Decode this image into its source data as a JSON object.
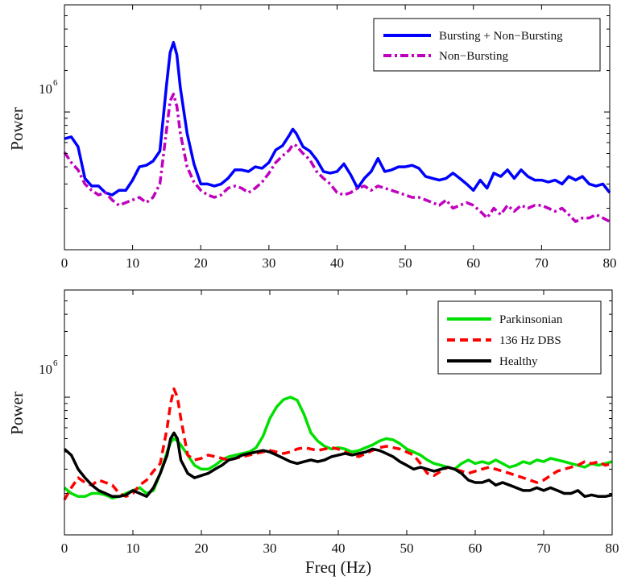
{
  "chart_data": [
    {
      "type": "line",
      "title": "",
      "xlabel": "",
      "ylabel": "Power",
      "xlim": [
        0,
        80
      ],
      "x_ticks": [
        "0",
        "10",
        "20",
        "30",
        "40",
        "50",
        "60",
        "70",
        "80"
      ],
      "y_scale": "log",
      "y_tick_base": "10",
      "y_tick_exp": "6",
      "y_tick_value": 1000000,
      "ylim": [
        100000,
        6000000
      ],
      "grid": false,
      "legend": "top-right",
      "series": [
        {
          "name": "Bursting + Non−Bursting",
          "color": "#0000ff",
          "style": "solid",
          "x": [
            0,
            1,
            2,
            3,
            4,
            5,
            6,
            7,
            8,
            9,
            10,
            11,
            12,
            13,
            14,
            15,
            15.5,
            16,
            16.5,
            17,
            18,
            19,
            20,
            21,
            22,
            23,
            24,
            25,
            26,
            27,
            28,
            29,
            30,
            31,
            32,
            33,
            33.5,
            34,
            35,
            36,
            37,
            38,
            39,
            40,
            41,
            42,
            43,
            44,
            45,
            46,
            47,
            48,
            49,
            50,
            51,
            52,
            53,
            54,
            55,
            56,
            57,
            58,
            59,
            60,
            61,
            62,
            63,
            64,
            65,
            66,
            67,
            68,
            69,
            70,
            71,
            72,
            73,
            74,
            75,
            76,
            77,
            78,
            79,
            80
          ],
          "values": [
            640000,
            660000,
            560000,
            330000,
            290000,
            290000,
            260000,
            250000,
            270000,
            270000,
            320000,
            400000,
            410000,
            440000,
            520000,
            1600000,
            2700000,
            3200000,
            2600000,
            1500000,
            700000,
            420000,
            300000,
            300000,
            290000,
            300000,
            330000,
            380000,
            380000,
            370000,
            400000,
            390000,
            430000,
            530000,
            570000,
            680000,
            750000,
            700000,
            560000,
            520000,
            450000,
            370000,
            360000,
            370000,
            420000,
            350000,
            280000,
            330000,
            370000,
            460000,
            370000,
            380000,
            400000,
            400000,
            410000,
            390000,
            340000,
            330000,
            320000,
            330000,
            360000,
            330000,
            300000,
            270000,
            320000,
            280000,
            360000,
            340000,
            380000,
            330000,
            380000,
            340000,
            320000,
            320000,
            310000,
            320000,
            300000,
            340000,
            320000,
            340000,
            300000,
            290000,
            300000,
            260000
          ]
        },
        {
          "name": "Non−Bursting",
          "color": "#bf00bf",
          "style": "dashdot",
          "x": [
            0,
            1,
            2,
            3,
            4,
            5,
            6,
            7,
            8,
            9,
            10,
            11,
            12,
            13,
            14,
            15,
            15.5,
            16,
            16.5,
            17,
            18,
            19,
            20,
            21,
            22,
            23,
            24,
            25,
            26,
            27,
            28,
            29,
            30,
            31,
            32,
            33,
            33.5,
            34,
            35,
            36,
            37,
            38,
            39,
            40,
            41,
            42,
            43,
            44,
            45,
            46,
            47,
            48,
            49,
            50,
            51,
            52,
            53,
            54,
            55,
            56,
            57,
            58,
            59,
            60,
            61,
            62,
            63,
            64,
            65,
            66,
            67,
            68,
            69,
            70,
            71,
            72,
            73,
            74,
            75,
            76,
            77,
            78,
            79,
            80
          ],
          "values": [
            510000,
            430000,
            380000,
            300000,
            270000,
            250000,
            260000,
            230000,
            210000,
            220000,
            230000,
            240000,
            220000,
            240000,
            300000,
            750000,
            1200000,
            1350000,
            1100000,
            700000,
            400000,
            310000,
            270000,
            250000,
            240000,
            250000,
            280000,
            290000,
            280000,
            260000,
            280000,
            310000,
            360000,
            430000,
            480000,
            530000,
            580000,
            570000,
            500000,
            450000,
            370000,
            330000,
            300000,
            260000,
            250000,
            260000,
            280000,
            290000,
            270000,
            290000,
            280000,
            270000,
            260000,
            250000,
            240000,
            240000,
            230000,
            220000,
            210000,
            230000,
            200000,
            210000,
            220000,
            210000,
            190000,
            170000,
            200000,
            180000,
            210000,
            190000,
            210000,
            200000,
            210000,
            210000,
            200000,
            190000,
            200000,
            180000,
            160000,
            170000,
            170000,
            180000,
            170000,
            160000
          ]
        }
      ]
    },
    {
      "type": "line",
      "title": "",
      "xlabel": "Freq (Hz)",
      "ylabel": "Power",
      "xlim": [
        0,
        80
      ],
      "x_ticks": [
        "0",
        "10",
        "20",
        "30",
        "40",
        "50",
        "60",
        "70",
        "80"
      ],
      "y_scale": "log",
      "y_tick_base": "10",
      "y_tick_exp": "6",
      "y_tick_value": 1000000,
      "ylim": [
        100000,
        6000000
      ],
      "grid": false,
      "legend": "top-right",
      "series": [
        {
          "name": "Parkinsonian",
          "color": "#00e000",
          "style": "solid",
          "x": [
            0,
            1,
            2,
            3,
            4,
            5,
            6,
            7,
            8,
            9,
            10,
            11,
            12,
            13,
            14,
            15,
            15.5,
            16,
            16.5,
            17,
            18,
            19,
            20,
            21,
            22,
            23,
            24,
            25,
            26,
            27,
            28,
            29,
            30,
            31,
            32,
            33,
            34,
            35,
            36,
            37,
            38,
            39,
            40,
            41,
            42,
            43,
            44,
            45,
            46,
            47,
            48,
            49,
            50,
            51,
            52,
            53,
            54,
            55,
            56,
            57,
            58,
            59,
            60,
            61,
            62,
            63,
            64,
            65,
            66,
            67,
            68,
            69,
            70,
            71,
            72,
            73,
            74,
            75,
            76,
            77,
            78,
            79,
            80
          ],
          "values": [
            220000,
            200000,
            190000,
            190000,
            200000,
            200000,
            195000,
            185000,
            190000,
            200000,
            210000,
            220000,
            200000,
            210000,
            280000,
            400000,
            470000,
            500000,
            480000,
            450000,
            380000,
            320000,
            300000,
            300000,
            320000,
            350000,
            370000,
            380000,
            390000,
            400000,
            430000,
            520000,
            700000,
            850000,
            960000,
            1000000,
            950000,
            750000,
            550000,
            480000,
            440000,
            420000,
            430000,
            420000,
            400000,
            410000,
            430000,
            450000,
            480000,
            500000,
            490000,
            460000,
            420000,
            400000,
            380000,
            350000,
            330000,
            320000,
            310000,
            300000,
            330000,
            350000,
            330000,
            340000,
            330000,
            350000,
            330000,
            310000,
            320000,
            340000,
            330000,
            350000,
            340000,
            360000,
            350000,
            340000,
            330000,
            320000,
            310000,
            330000,
            320000,
            330000,
            340000
          ]
        },
        {
          "name": "136 Hz DBS",
          "color": "#ff0000",
          "style": "dashed",
          "x": [
            0,
            1,
            2,
            3,
            4,
            5,
            6,
            7,
            8,
            9,
            10,
            11,
            12,
            13,
            14,
            15,
            15.5,
            16,
            16.5,
            17,
            18,
            19,
            20,
            21,
            22,
            23,
            24,
            25,
            26,
            27,
            28,
            29,
            30,
            31,
            32,
            33,
            34,
            35,
            36,
            37,
            38,
            39,
            40,
            41,
            42,
            43,
            44,
            45,
            46,
            47,
            48,
            49,
            50,
            51,
            52,
            53,
            54,
            55,
            56,
            57,
            58,
            59,
            60,
            61,
            62,
            63,
            64,
            65,
            66,
            67,
            68,
            69,
            70,
            71,
            72,
            73,
            74,
            75,
            76,
            77,
            78,
            79,
            80
          ],
          "values": [
            180000,
            220000,
            260000,
            240000,
            230000,
            250000,
            240000,
            230000,
            200000,
            190000,
            200000,
            230000,
            250000,
            290000,
            330000,
            600000,
            900000,
            1150000,
            1000000,
            700000,
            380000,
            350000,
            360000,
            380000,
            370000,
            360000,
            350000,
            360000,
            370000,
            380000,
            390000,
            400000,
            410000,
            400000,
            390000,
            400000,
            420000,
            430000,
            420000,
            410000,
            420000,
            430000,
            420000,
            400000,
            380000,
            370000,
            390000,
            410000,
            430000,
            440000,
            430000,
            420000,
            400000,
            380000,
            330000,
            280000,
            270000,
            290000,
            310000,
            300000,
            290000,
            280000,
            290000,
            300000,
            310000,
            300000,
            290000,
            280000,
            270000,
            260000,
            250000,
            240000,
            250000,
            270000,
            290000,
            300000,
            310000,
            320000,
            340000,
            330000,
            340000,
            320000,
            330000
          ]
        },
        {
          "name": "Healthy",
          "color": "#000000",
          "style": "solid",
          "x": [
            0,
            1,
            2,
            3,
            4,
            5,
            6,
            7,
            8,
            9,
            10,
            11,
            12,
            13,
            14,
            15,
            15.5,
            16,
            16.5,
            17,
            18,
            19,
            20,
            21,
            22,
            23,
            24,
            25,
            26,
            27,
            28,
            29,
            30,
            31,
            32,
            33,
            34,
            35,
            36,
            37,
            38,
            39,
            40,
            41,
            42,
            43,
            44,
            45,
            46,
            47,
            48,
            49,
            50,
            51,
            52,
            53,
            54,
            55,
            56,
            57,
            58,
            59,
            60,
            61,
            62,
            63,
            64,
            65,
            66,
            67,
            68,
            69,
            70,
            71,
            72,
            73,
            74,
            75,
            76,
            77,
            78,
            79,
            80
          ],
          "values": [
            420000,
            380000,
            300000,
            260000,
            230000,
            210000,
            200000,
            190000,
            190000,
            195000,
            210000,
            200000,
            190000,
            220000,
            280000,
            380000,
            500000,
            550000,
            500000,
            350000,
            280000,
            260000,
            270000,
            280000,
            300000,
            320000,
            350000,
            360000,
            380000,
            390000,
            400000,
            410000,
            400000,
            380000,
            360000,
            340000,
            330000,
            340000,
            350000,
            340000,
            350000,
            370000,
            380000,
            390000,
            380000,
            390000,
            400000,
            420000,
            410000,
            390000,
            370000,
            340000,
            320000,
            300000,
            310000,
            300000,
            290000,
            300000,
            310000,
            300000,
            280000,
            250000,
            240000,
            240000,
            250000,
            230000,
            240000,
            230000,
            220000,
            210000,
            210000,
            220000,
            210000,
            220000,
            210000,
            200000,
            200000,
            210000,
            190000,
            195000,
            190000,
            190000,
            195000
          ]
        }
      ]
    }
  ]
}
